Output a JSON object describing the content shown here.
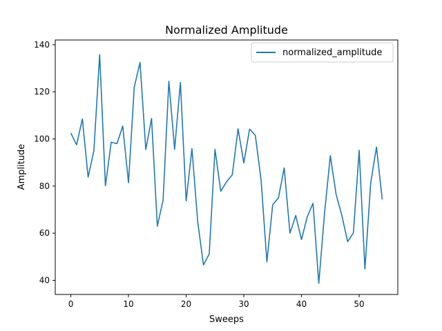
{
  "chart_data": {
    "type": "line",
    "title": "Normalized Amplitude",
    "xlabel": "Sweeps",
    "ylabel": "Amplitude",
    "xlim": [
      -2.7,
      56.7
    ],
    "ylim": [
      34,
      142
    ],
    "xticks": [
      0,
      10,
      20,
      30,
      40,
      50
    ],
    "yticks": [
      40,
      60,
      80,
      100,
      120,
      140
    ],
    "grid": false,
    "legend_position": "top-right",
    "series": [
      {
        "name": "normalized_amplitude",
        "color": "#1f77b4",
        "x": [
          0,
          1,
          2,
          3,
          4,
          5,
          6,
          7,
          8,
          9,
          10,
          11,
          12,
          13,
          14,
          15,
          16,
          17,
          18,
          19,
          20,
          21,
          22,
          23,
          24,
          25,
          26,
          27,
          28,
          29,
          30,
          31,
          32,
          33,
          34,
          35,
          36,
          37,
          38,
          39,
          40,
          41,
          42,
          43,
          44,
          45,
          46,
          47,
          48,
          49,
          50,
          51,
          52,
          53,
          54
        ],
        "values": [
          102.5,
          97.5,
          108.5,
          83.8,
          95,
          135.8,
          80.1,
          98.6,
          98,
          105.5,
          81.4,
          122,
          132.5,
          95.5,
          108.7,
          63,
          74,
          124.5,
          95.6,
          124,
          73.7,
          95.9,
          65,
          46.5,
          51.2,
          95.6,
          77.8,
          81.8,
          84.8,
          104.3,
          89.8,
          104.2,
          101.5,
          82.4,
          47.8,
          72,
          75,
          87.7,
          60,
          67.5,
          57.3,
          67,
          72.7,
          38.7,
          68.6,
          92.9,
          76.5,
          67.5,
          56.4,
          60.1,
          95.2,
          44.8,
          81.3,
          96.6,
          74.3
        ]
      }
    ]
  }
}
